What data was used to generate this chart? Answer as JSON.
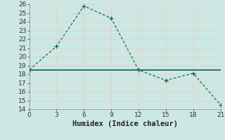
{
  "xlabel": "Humidex (Indice chaleur)",
  "x_data": [
    0,
    3,
    6,
    9,
    12,
    15,
    18,
    21
  ],
  "y_data": [
    18.5,
    21.2,
    25.8,
    24.4,
    18.5,
    17.3,
    18.1,
    14.5
  ],
  "hline_y": 18.5,
  "xlim": [
    0,
    21
  ],
  "ylim": [
    14,
    26
  ],
  "xticks": [
    0,
    3,
    6,
    9,
    12,
    15,
    18,
    21
  ],
  "yticks": [
    14,
    15,
    16,
    17,
    18,
    19,
    20,
    21,
    22,
    23,
    24,
    25,
    26
  ],
  "line_color": "#1a6b5a",
  "hline_color": "#1a6b5a",
  "bg_color": "#cce8e2",
  "grid_color": "#e8d0d0",
  "tick_label_fontsize": 6.5,
  "axis_label_fontsize": 7.5
}
